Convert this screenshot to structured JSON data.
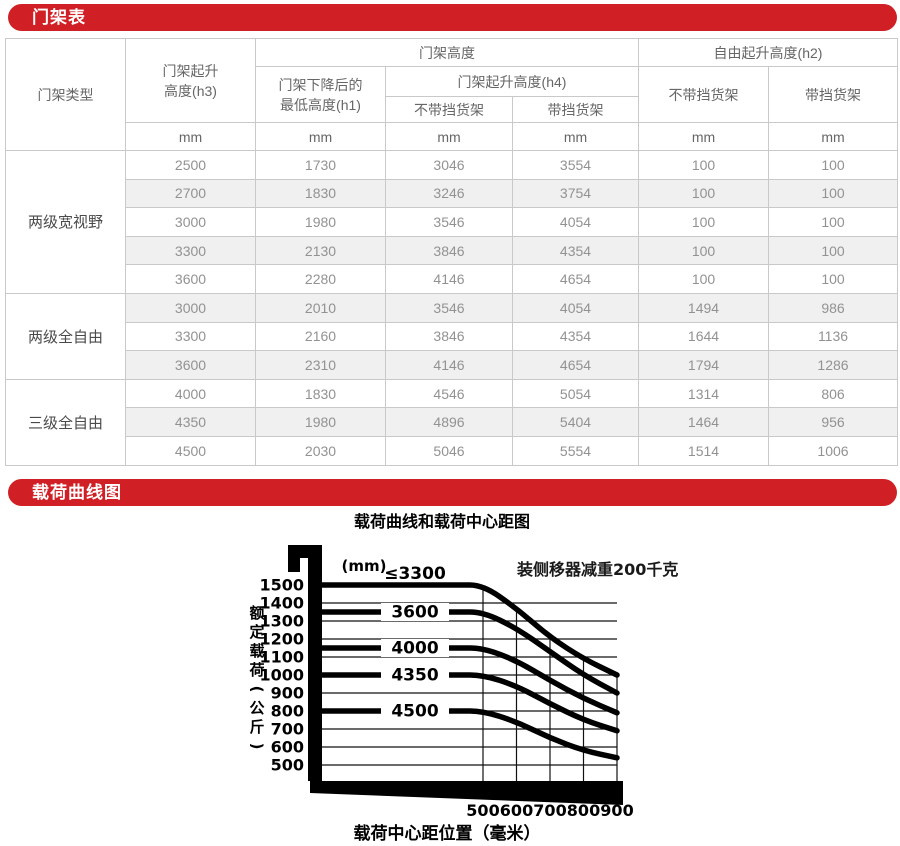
{
  "banners": {
    "mast_table": "门架表",
    "load_curve": "载荷曲线图"
  },
  "table": {
    "col_headers": {
      "mast_type": "门架类型",
      "h3_line1": "门架起升",
      "h3_line2": "高度(h3)",
      "mast_height": "门架高度",
      "h1_line1": "门架下降后的",
      "h1_line2": "最低高度(h1)",
      "h4": "门架起升高度(h4)",
      "free_lift_h2": "自由起升高度(h2)",
      "without_backrest": "不带挡货架",
      "with_backrest": "带挡货架"
    },
    "unit": "mm",
    "groups": [
      {
        "type": "两级宽视野",
        "rows": [
          [
            2500,
            1730,
            3046,
            3554,
            100,
            100
          ],
          [
            2700,
            1830,
            3246,
            3754,
            100,
            100
          ],
          [
            3000,
            1980,
            3546,
            4054,
            100,
            100
          ],
          [
            3300,
            2130,
            3846,
            4354,
            100,
            100
          ],
          [
            3600,
            2280,
            4146,
            4654,
            100,
            100
          ]
        ]
      },
      {
        "type": "两级全自由",
        "rows": [
          [
            3000,
            2010,
            3546,
            4054,
            1494,
            986
          ],
          [
            3300,
            2160,
            3846,
            4354,
            1644,
            1136
          ],
          [
            3600,
            2310,
            4146,
            4654,
            1794,
            1286
          ]
        ]
      },
      {
        "type": "三级全自由",
        "rows": [
          [
            4000,
            1830,
            4546,
            5054,
            1314,
            806
          ],
          [
            4350,
            1980,
            4896,
            5404,
            1464,
            956
          ],
          [
            4500,
            2030,
            5046,
            5554,
            1514,
            1006
          ]
        ]
      }
    ]
  },
  "chart_data": {
    "type": "line",
    "title": "载荷曲线和载荷中心距图",
    "ylabel": "额定载荷(公斤)",
    "xlabel": "载荷中心距位置（毫米）",
    "curve_unit_note": "(mm)",
    "annotation": "装侧移器减重200千克",
    "x_ticks": [
      500,
      600,
      700,
      800,
      900
    ],
    "y_ticks": [
      1500,
      1400,
      1300,
      1200,
      1100,
      1000,
      900,
      800,
      700,
      600,
      500
    ],
    "ylim": [
      500,
      1500
    ],
    "x": [
      500,
      600,
      700,
      800,
      900
    ],
    "series": [
      {
        "name": "≤3300",
        "label_style": "above",
        "values": [
          1500,
          1370,
          1210,
          1090,
          1000
        ]
      },
      {
        "name": "3600",
        "label_style": "inline",
        "values": [
          1350,
          1260,
          1130,
          1000,
          900
        ]
      },
      {
        "name": "4000",
        "label_style": "inline",
        "values": [
          1150,
          1080,
          970,
          870,
          790
        ]
      },
      {
        "name": "4350",
        "label_style": "inline",
        "values": [
          1000,
          940,
          840,
          750,
          690
        ]
      },
      {
        "name": "4500",
        "label_style": "inline",
        "values": [
          800,
          740,
          650,
          580,
          540
        ]
      }
    ],
    "grid": true,
    "legend_position": "on-curve"
  }
}
